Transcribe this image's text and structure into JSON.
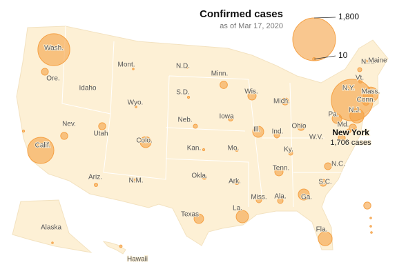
{
  "chart_data": {
    "type": "bubble-map",
    "title": "Confirmed cases",
    "subtitle": "as of Mar 17, 2020",
    "color": "#f5a145",
    "size_legend": [
      {
        "value": 1800,
        "label": "1,800"
      },
      {
        "value": 10,
        "label": "10"
      }
    ],
    "callout": {
      "name": "New York",
      "label": "1,706 cases"
    },
    "categories": [
      "Wash.",
      "Ore.",
      "Calif.",
      "Nev.",
      "Idaho",
      "Mont.",
      "Wyo.",
      "Utah",
      "Colo.",
      "Ariz.",
      "N.M.",
      "N.D.",
      "S.D.",
      "Neb.",
      "Kan.",
      "Okla.",
      "Texas",
      "Minn.",
      "Iowa",
      "Mo.",
      "Ark.",
      "La.",
      "Wis.",
      "Ill.",
      "Miss.",
      "Tenn.",
      "Ala.",
      "Ky.",
      "Ind.",
      "Mich.",
      "Ohio",
      "W.V.",
      "Ga.",
      "Fla.",
      "S.C.",
      "N.C.",
      "Vt.",
      "Md.",
      null,
      "Pa.",
      "N.J.",
      "N.Y.",
      "Conn.",
      null,
      "Mass.",
      "N.H.",
      "Maine",
      null,
      null,
      "Alaska",
      "Hawaii",
      null,
      null,
      null,
      null,
      null
    ],
    "values": [
      1000,
      47,
      680,
      50,
      7,
      3,
      3,
      50,
      120,
      12,
      15,
      2,
      5,
      17,
      5,
      17,
      90,
      54,
      23,
      11,
      23,
      150,
      67,
      120,
      30,
      67,
      30,
      17,
      30,
      50,
      50,
      null,
      120,
      190,
      47,
      47,
      12,
      50,
      17,
      90,
      200,
      1706,
      41,
      17,
      218,
      17,
      17,
      7,
      47,
      3,
      7,
      5,
      50,
      3,
      3,
      3
    ]
  }
}
